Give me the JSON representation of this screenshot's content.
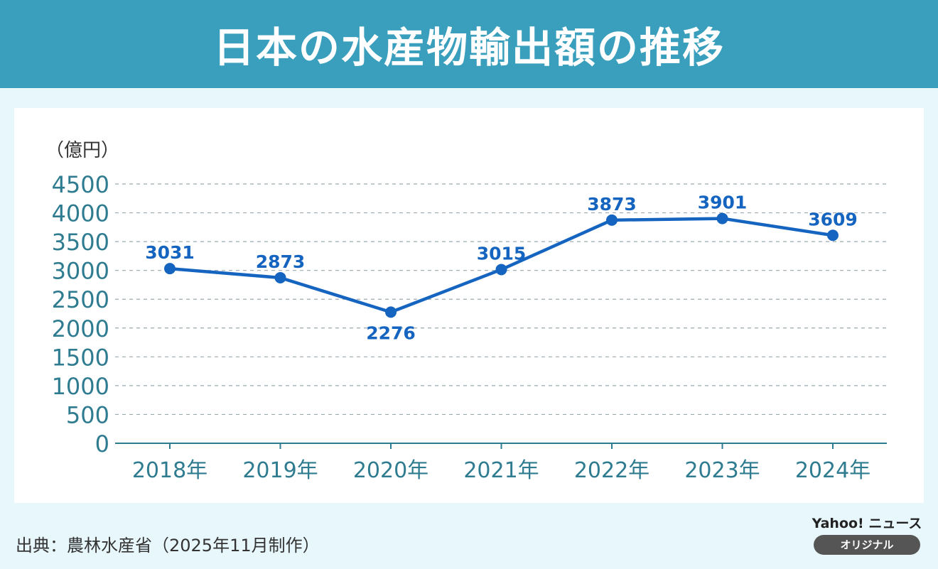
{
  "header": {
    "title": "日本の水産物輸出額の推移"
  },
  "source": "出典：農林水産省（2025年11月制作）",
  "brand": {
    "name": "Yahoo! ニュース",
    "badge": "オリジナル"
  },
  "colors": {
    "header": "#3a9fbd",
    "line": "#1565c0",
    "axis_text": "#2f7c91"
  },
  "chart_data": {
    "type": "line",
    "title": "日本の水産物輸出額の推移",
    "unit_label": "（億円）",
    "categories": [
      "2018年",
      "2019年",
      "2020年",
      "2021年",
      "2022年",
      "2023年",
      "2024年"
    ],
    "values": [
      3031,
      2873,
      2276,
      3015,
      3873,
      3901,
      3609
    ],
    "data_labels": [
      "3031",
      "2873",
      "2276",
      "3015",
      "3873",
      "3901",
      "3609"
    ],
    "ylim": [
      0,
      4500
    ],
    "yticks": [
      "0",
      "500",
      "1000",
      "1500",
      "2000",
      "2500",
      "3000",
      "3500",
      "4000",
      "4500"
    ],
    "grid": true,
    "legend": "none"
  }
}
